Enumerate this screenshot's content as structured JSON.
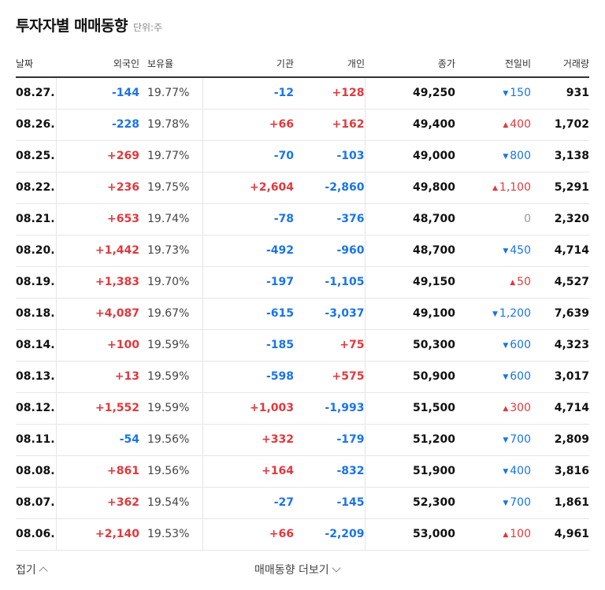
{
  "header": {
    "title": "투자자별 매매동향",
    "unit": "단위:주"
  },
  "columns": {
    "date": "날짜",
    "foreign": "외국인",
    "holding": "보유율",
    "institution": "기관",
    "individual": "개인",
    "close": "종가",
    "change": "전일비",
    "volume": "거래량"
  },
  "colors": {
    "up": "#e0393e",
    "down": "#1a74e8",
    "flat": "#999999"
  },
  "rows": [
    {
      "date": "08.27.",
      "foreign": "-144",
      "holding": "19.77%",
      "institution": "-12",
      "individual": "+128",
      "close": "49,250",
      "dir": "down",
      "change": "150",
      "volume": "931"
    },
    {
      "date": "08.26.",
      "foreign": "-228",
      "holding": "19.78%",
      "institution": "+66",
      "individual": "+162",
      "close": "49,400",
      "dir": "up",
      "change": "400",
      "volume": "1,702"
    },
    {
      "date": "08.25.",
      "foreign": "+269",
      "holding": "19.77%",
      "institution": "-70",
      "individual": "-103",
      "close": "49,000",
      "dir": "down",
      "change": "800",
      "volume": "3,138"
    },
    {
      "date": "08.22.",
      "foreign": "+236",
      "holding": "19.75%",
      "institution": "+2,604",
      "individual": "-2,860",
      "close": "49,800",
      "dir": "up",
      "change": "1,100",
      "volume": "5,291"
    },
    {
      "date": "08.21.",
      "foreign": "+653",
      "holding": "19.74%",
      "institution": "-78",
      "individual": "-376",
      "close": "48,700",
      "dir": "flat",
      "change": "0",
      "volume": "2,320"
    },
    {
      "date": "08.20.",
      "foreign": "+1,442",
      "holding": "19.73%",
      "institution": "-492",
      "individual": "-960",
      "close": "48,700",
      "dir": "down",
      "change": "450",
      "volume": "4,714"
    },
    {
      "date": "08.19.",
      "foreign": "+1,383",
      "holding": "19.70%",
      "institution": "-197",
      "individual": "-1,105",
      "close": "49,150",
      "dir": "up",
      "change": "50",
      "volume": "4,527"
    },
    {
      "date": "08.18.",
      "foreign": "+4,087",
      "holding": "19.67%",
      "institution": "-615",
      "individual": "-3,037",
      "close": "49,100",
      "dir": "down",
      "change": "1,200",
      "volume": "7,639"
    },
    {
      "date": "08.14.",
      "foreign": "+100",
      "holding": "19.59%",
      "institution": "-185",
      "individual": "+75",
      "close": "50,300",
      "dir": "down",
      "change": "600",
      "volume": "4,323"
    },
    {
      "date": "08.13.",
      "foreign": "+13",
      "holding": "19.59%",
      "institution": "-598",
      "individual": "+575",
      "close": "50,900",
      "dir": "down",
      "change": "600",
      "volume": "3,017"
    },
    {
      "date": "08.12.",
      "foreign": "+1,552",
      "holding": "19.59%",
      "institution": "+1,003",
      "individual": "-1,993",
      "close": "51,500",
      "dir": "up",
      "change": "300",
      "volume": "4,714"
    },
    {
      "date": "08.11.",
      "foreign": "-54",
      "holding": "19.56%",
      "institution": "+332",
      "individual": "-179",
      "close": "51,200",
      "dir": "down",
      "change": "700",
      "volume": "2,809"
    },
    {
      "date": "08.08.",
      "foreign": "+861",
      "holding": "19.56%",
      "institution": "+164",
      "individual": "-832",
      "close": "51,900",
      "dir": "down",
      "change": "400",
      "volume": "3,816"
    },
    {
      "date": "08.07.",
      "foreign": "+362",
      "holding": "19.54%",
      "institution": "-27",
      "individual": "-145",
      "close": "52,300",
      "dir": "down",
      "change": "700",
      "volume": "1,861"
    },
    {
      "date": "08.06.",
      "foreign": "+2,140",
      "holding": "19.53%",
      "institution": "+66",
      "individual": "-2,209",
      "close": "53,000",
      "dir": "up",
      "change": "100",
      "volume": "4,961"
    }
  ],
  "footer": {
    "fold": "접기",
    "more": "매매동향 더보기"
  }
}
